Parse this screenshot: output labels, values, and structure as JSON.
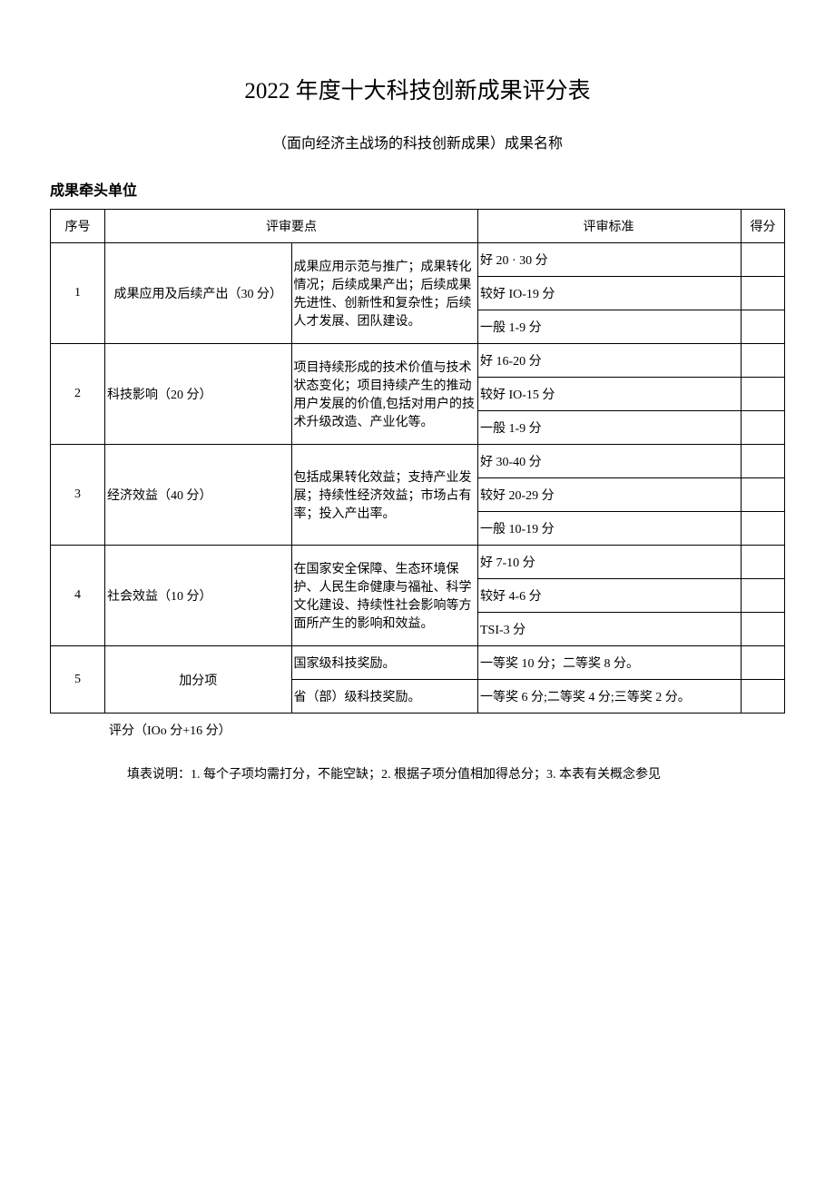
{
  "title": "2022 年度十大科技创新成果评分表",
  "subtitle": "（面向经济主战场的科技创新成果）成果名称",
  "org_label": "成果牵头单位",
  "columns": {
    "num": "序号",
    "key_points": "评审要点",
    "criteria": "评审标准",
    "score": "得分"
  },
  "rows": [
    {
      "num": "1",
      "category": "成果应用及后续产出（30 分）",
      "category_align": "center",
      "detail": "成果应用示范与推广；成果转化情况；后续成果产出；后续成果先进性、创新性和复杂性；后续人才发展、团队建设。",
      "criteria": [
        "好 20 · 30 分",
        "较好 IO-19 分",
        "一般 1-9 分"
      ]
    },
    {
      "num": "2",
      "category": "科技影响（20 分）",
      "category_align": "left",
      "detail": "项目持续形成的技术价值与技术状态变化；项目持续产生的推动用户发展的价值,包括对用户的技术升级改造、产业化等。",
      "criteria": [
        "好 16-20 分",
        "较好 IO-15 分",
        "一般 1-9 分"
      ]
    },
    {
      "num": "3",
      "category": "经济效益（40 分）",
      "category_align": "left",
      "detail": "包括成果转化效益；支持产业发展；持续性经济效益；市场占有率；投入产出率。",
      "criteria": [
        "好 30-40 分",
        "较好 20-29 分",
        "一般 10-19 分"
      ]
    },
    {
      "num": "4",
      "category": "社会效益（10 分）",
      "category_align": "left",
      "detail": "在国家安全保障、生态环境保护、人民生命健康与福祉、科学文化建设、持续性社会影响等方面所产生的影响和效益。",
      "criteria": [
        "好 7-10 分",
        "较好 4-6 分",
        "TSI-3 分"
      ]
    },
    {
      "num": "5",
      "category": "加分项",
      "category_align": "center",
      "bonus": [
        {
          "detail": "国家级科技奖励。",
          "criteria": "一等奖 10 分；二等奖 8 分。"
        },
        {
          "detail": "省（部）级科技奖励。",
          "criteria": "一等奖 6 分;二等奖 4 分;三等奖 2 分。"
        }
      ]
    }
  ],
  "total_label": "评分（IOo 分+16 分）",
  "note": "填表说明：1. 每个子项均需打分，不能空缺；2. 根据子项分值相加得总分；3. 本表有关概念参见",
  "style": {
    "background_color": "#ffffff",
    "text_color": "#000000",
    "border_color": "#000000",
    "title_fontsize": 25,
    "body_fontsize": 14,
    "subtitle_fontsize": 16,
    "col_widths": {
      "num": 60,
      "category": 148,
      "detail": 260,
      "criteria": 290,
      "score": 48
    }
  }
}
